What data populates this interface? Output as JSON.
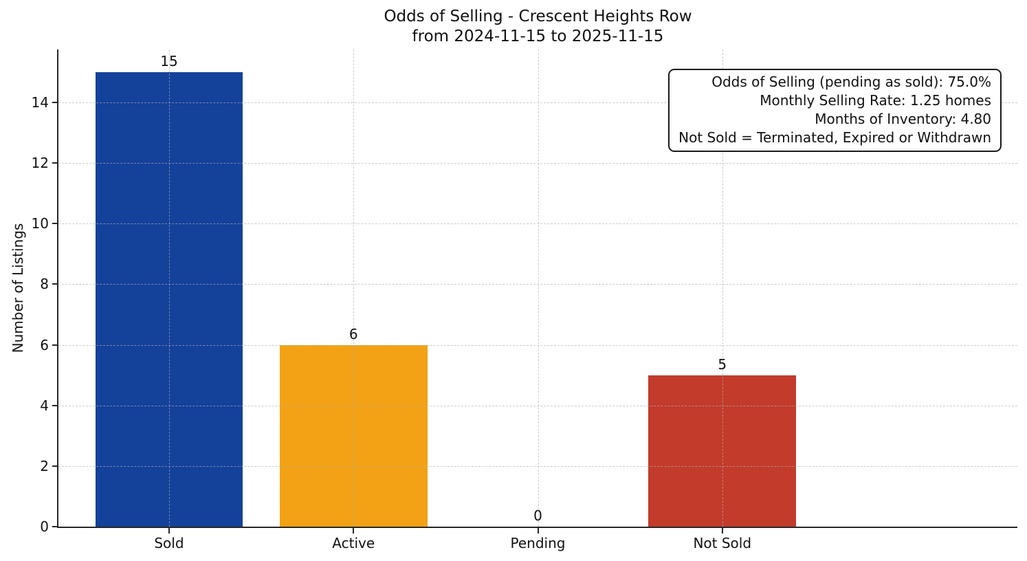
{
  "chart_data": {
    "type": "bar",
    "title": "Odds of Selling - Crescent Heights Row",
    "subtitle": "from 2024-11-15 to 2025-11-15",
    "categories": [
      "Sold",
      "Active",
      "Pending",
      "Not Sold"
    ],
    "values": [
      15,
      6,
      0,
      5
    ],
    "bar_colors": [
      "#14419a",
      "#f2a214",
      "#f2a214",
      "#c23b2b"
    ],
    "bar_color_by_category": {
      "Sold": "#14419a",
      "Active": "#f2a214",
      "Pending": "#f2a214",
      "Not Sold": "#c23b2b"
    },
    "xlabel": "",
    "ylabel": "Number of Listings",
    "yticks": [
      0,
      2,
      4,
      6,
      8,
      10,
      12,
      14
    ],
    "ylim": [
      0,
      15.75
    ],
    "grid": true,
    "grid_style": "dashed",
    "legend": "none",
    "annotation": {
      "position": "top-right",
      "lines": [
        "Odds of Selling (pending as sold): 75.0%",
        "Monthly Selling Rate: 1.25 homes",
        "Months of Inventory: 4.80",
        "Not Sold = Terminated, Expired or Withdrawn"
      ]
    },
    "colors": {
      "background": "#ffffff",
      "spine": "#262626",
      "text": "#111111",
      "grid": "#b0b0b0"
    }
  }
}
